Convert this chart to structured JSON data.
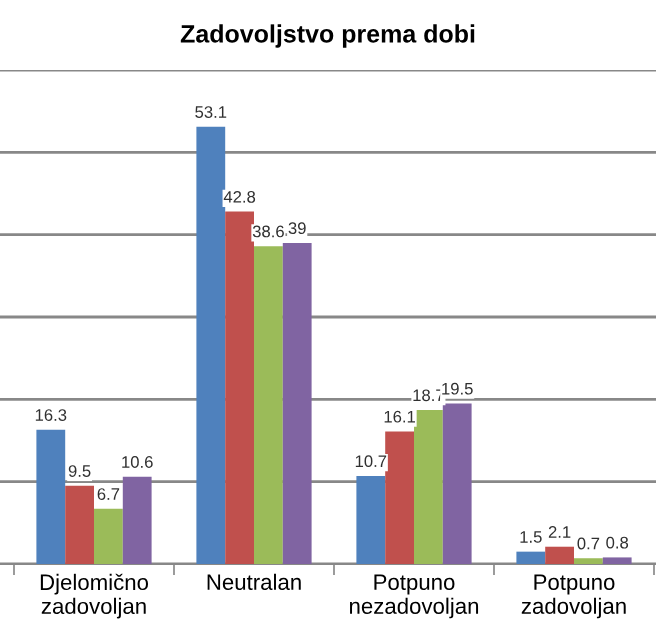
{
  "chart_data": {
    "type": "bar",
    "title": "Zadovoljstvo prema dobi",
    "categories": [
      "Djelomično\nzadovoljan",
      "Neutralan",
      "Potpuno\nnezadovoljan",
      "Potpuno\nzadovoljan"
    ],
    "series": [
      {
        "color": "#4f81bd",
        "values": [
          16.3,
          53.1,
          10.7,
          1.5
        ]
      },
      {
        "color": "#c0504d",
        "values": [
          9.5,
          42.8,
          16.1,
          2.1
        ]
      },
      {
        "color": "#9bbb59",
        "values": [
          6.7,
          38.6,
          18.7,
          0.7
        ]
      },
      {
        "color": "#8064a2",
        "values": [
          10.6,
          39,
          19.5,
          0.8
        ]
      }
    ],
    "ylim": [
      0,
      60
    ],
    "yticks": [
      {
        "value": 0,
        "label": null
      },
      {
        "value": 10,
        "label": null
      },
      {
        "value": 20,
        "label": null
      },
      {
        "value": 30,
        "label": null
      },
      {
        "value": 40,
        "label": null
      },
      {
        "value": 50,
        "label": null
      },
      {
        "value": 60,
        "label": null
      }
    ],
    "tick_labels": "x",
    "grid": "y",
    "data_labels": true
  }
}
